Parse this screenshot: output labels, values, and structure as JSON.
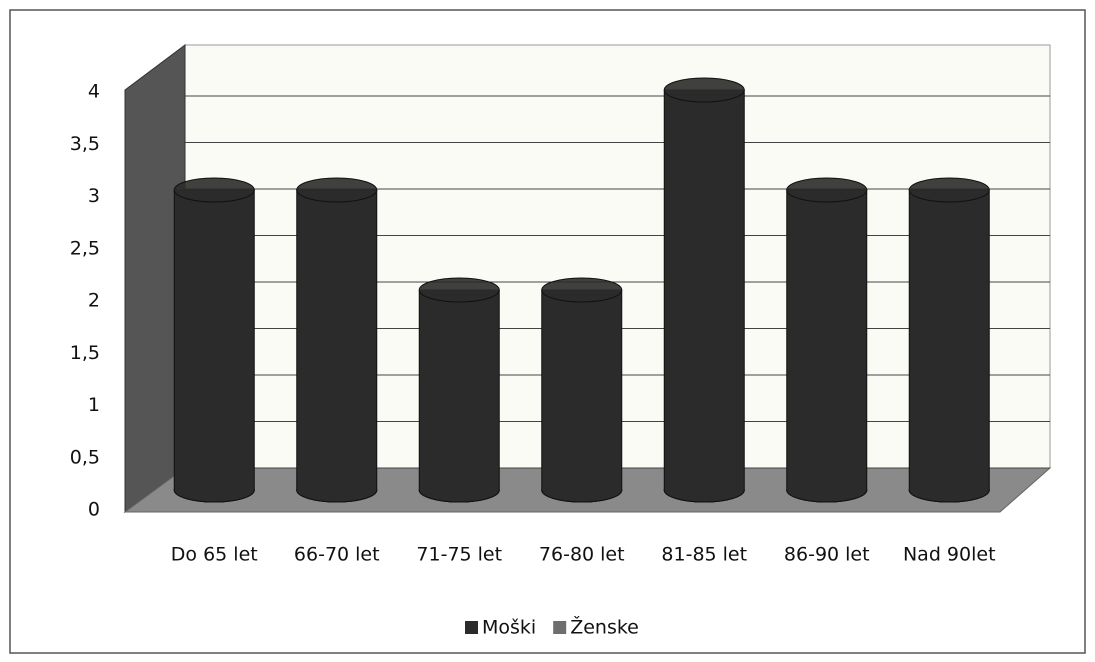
{
  "chart_data": {
    "type": "bar",
    "categories": [
      "Do 65 let",
      "66-70 let",
      "71-75 let",
      "76-80 let",
      "81-85 let",
      "86-90 let",
      "Nad 90let"
    ],
    "series": [
      {
        "name": "Moški",
        "color": "#2b2b2b",
        "values": [
          3,
          3,
          2,
          2,
          4,
          3,
          3
        ]
      },
      {
        "name": "Ženske",
        "color": "#6e6e6e",
        "values": [
          0,
          0,
          0,
          0,
          0,
          0,
          0
        ]
      }
    ],
    "ylim": [
      0,
      4
    ],
    "yticks": [
      0,
      {
        "value": 0.5,
        "label": "0,5"
      },
      1,
      {
        "value": 1.5,
        "label": "1,5"
      },
      2,
      {
        "value": 2.5,
        "label": "2,5"
      },
      3,
      {
        "value": 3.5,
        "label": "3,5"
      },
      4
    ],
    "grid": true,
    "legend": "bottom"
  }
}
